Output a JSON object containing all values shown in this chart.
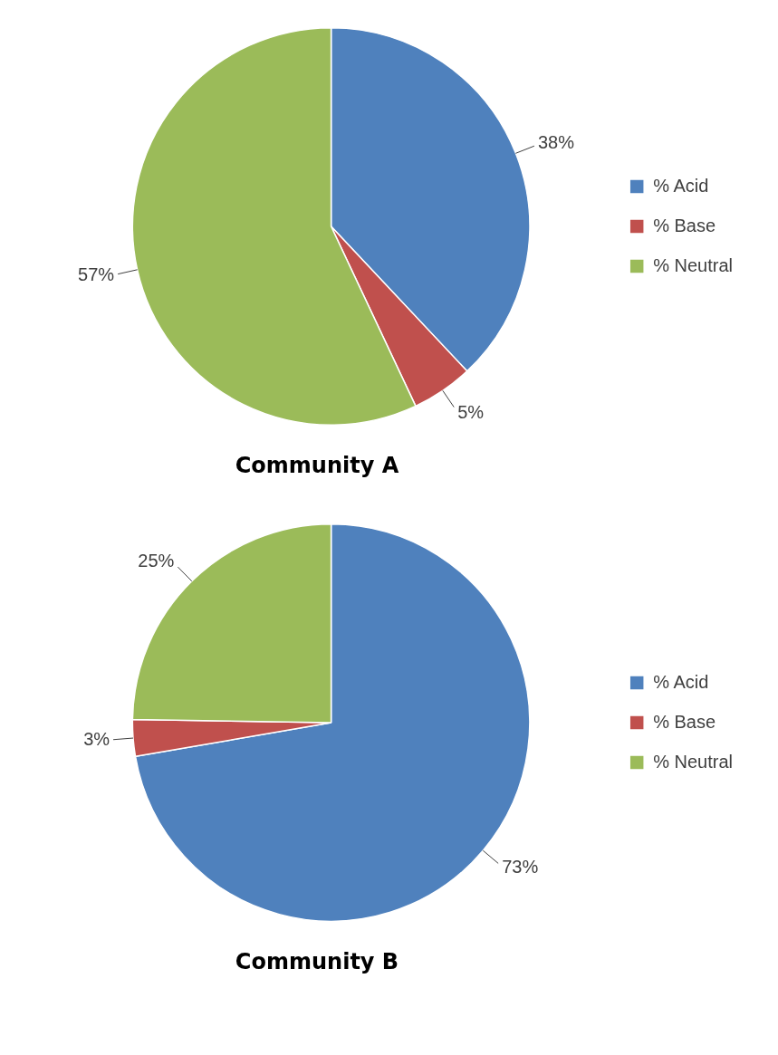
{
  "chart_data": [
    {
      "type": "pie",
      "title": "Community A",
      "categories": [
        "% Acid",
        "% Base",
        "% Neutral"
      ],
      "values": [
        38,
        5,
        57
      ],
      "colors": [
        "#4f81bd",
        "#c0504d",
        "#9bbb59"
      ],
      "value_labels": [
        "38%",
        "5%",
        "57%"
      ],
      "legend": "right"
    },
    {
      "type": "pie",
      "title": "Community B",
      "categories": [
        "% Acid",
        "% Base",
        "% Neutral"
      ],
      "values": [
        73,
        3,
        25
      ],
      "colors": [
        "#4f81bd",
        "#c0504d",
        "#9bbb59"
      ],
      "value_labels": [
        "73%",
        "3%",
        "25%"
      ],
      "legend": "right"
    }
  ]
}
